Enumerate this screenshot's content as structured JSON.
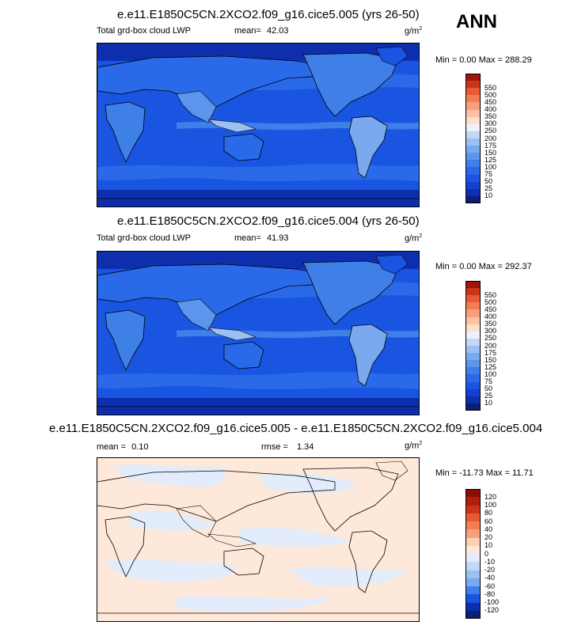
{
  "season": "ANN",
  "panels": [
    {
      "title": "e.e11.E1850C5CN.2XCO2.f09_g16.cice5.005 (yrs 26-50)",
      "variable": "Total grd-box cloud LWP",
      "mean_label": "mean=",
      "mean": "42.03",
      "units": "g/m",
      "units_sup": "2",
      "minmax": "Min =  0.00 Max = 288.29"
    },
    {
      "title": "e.e11.E1850C5CN.2XCO2.f09_g16.cice5.004 (yrs 26-50)",
      "variable": "Total grd-box cloud LWP",
      "mean_label": "mean=",
      "mean": "41.93",
      "units": "g/m",
      "units_sup": "2",
      "minmax": "Min =  0.00 Max = 292.37"
    },
    {
      "title": "e.e11.E1850C5CN.2XCO2.f09_g16.cice5.005 - e.e11.E1850C5CN.2XCO2.f09_g16.cice5.004",
      "mean_label": "mean =",
      "mean": "0.10",
      "rmse_label": "rmse =",
      "rmse": "1.34",
      "units": "g/m",
      "units_sup": "2",
      "minmax": "Min = -11.73 Max =  11.71"
    }
  ],
  "chart_data": [
    {
      "type": "heatmap",
      "title": "e.e11.E1850C5CN.2XCO2.f09_g16.cice5.005 (yrs 26-50)",
      "variable": "Total grd-box cloud LWP",
      "units": "g/m2",
      "mean": 42.03,
      "min": 0.0,
      "max": 288.29,
      "colorbar_levels": [
        10,
        25,
        50,
        75,
        100,
        125,
        150,
        175,
        200,
        250,
        300,
        350,
        400,
        450,
        500,
        550
      ],
      "colors": [
        "#0a1e7a",
        "#0d2fae",
        "#1240d0",
        "#1a55e2",
        "#2a6ae8",
        "#3e7fe8",
        "#5b95ec",
        "#7aa9f0",
        "#9cc0f4",
        "#c2d8f8",
        "#eef0fa",
        "#fde0cc",
        "#fbc2a4",
        "#f8a07a",
        "#f47e54",
        "#e85a34",
        "#cc3418",
        "#a0140a"
      ]
    },
    {
      "type": "heatmap",
      "title": "e.e11.E1850C5CN.2XCO2.f09_g16.cice5.004 (yrs 26-50)",
      "variable": "Total grd-box cloud LWP",
      "units": "g/m2",
      "mean": 41.93,
      "min": 0.0,
      "max": 292.37,
      "colorbar_levels": [
        10,
        25,
        50,
        75,
        100,
        125,
        150,
        175,
        200,
        250,
        300,
        350,
        400,
        450,
        500,
        550
      ],
      "colors": [
        "#0a1e7a",
        "#0d2fae",
        "#1240d0",
        "#1a55e2",
        "#2a6ae8",
        "#3e7fe8",
        "#5b95ec",
        "#7aa9f0",
        "#9cc0f4",
        "#c2d8f8",
        "#eef0fa",
        "#fde0cc",
        "#fbc2a4",
        "#f8a07a",
        "#f47e54",
        "#e85a34",
        "#cc3418",
        "#a0140a"
      ]
    },
    {
      "type": "heatmap",
      "title": "e.e11.E1850C5CN.2XCO2.f09_g16.cice5.005 - e.e11.E1850C5CN.2XCO2.f09_g16.cice5.004",
      "units": "g/m2",
      "mean": 0.1,
      "rmse": 1.34,
      "min": -11.73,
      "max": 11.71,
      "colorbar_levels": [
        -120,
        -100,
        -80,
        -60,
        -40,
        -20,
        -10,
        0,
        10,
        20,
        40,
        60,
        80,
        100,
        120
      ],
      "colors": [
        "#0a1e7a",
        "#0d2fae",
        "#1a55e2",
        "#3e7fe8",
        "#7aa9f0",
        "#9cc0f4",
        "#c2d8f8",
        "#e2ecfa",
        "#fde8da",
        "#fbd0b6",
        "#f8a07a",
        "#f47e54",
        "#e85a34",
        "#cc3418",
        "#b01e0e",
        "#8a0e06"
      ]
    }
  ]
}
